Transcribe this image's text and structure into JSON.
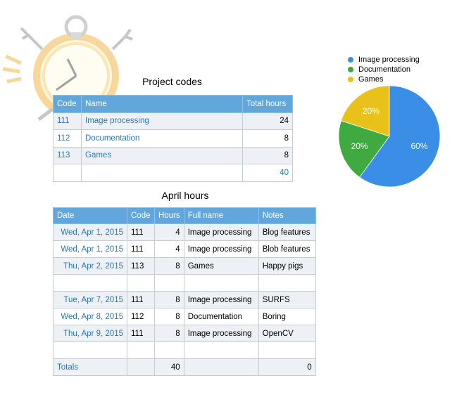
{
  "project_codes": {
    "title": "Project codes",
    "headers": [
      "Code",
      "Name",
      "Total hours"
    ],
    "rows": [
      {
        "code": "111",
        "name": "Image processing",
        "total": "24"
      },
      {
        "code": "112",
        "name": "Documentation",
        "total": "8"
      },
      {
        "code": "113",
        "name": "Games",
        "total": "8"
      },
      {
        "code": "",
        "name": "",
        "total": "40"
      }
    ]
  },
  "april_hours": {
    "title": "April hours",
    "headers": [
      "Date",
      "Code",
      "Hours",
      "Full name",
      "Notes"
    ],
    "rows": [
      {
        "date": "Wed, Apr 1, 2015",
        "code": "111",
        "hours": "4",
        "full_name": "Image processing",
        "notes": "Blog features"
      },
      {
        "date": "Wed, Apr 1, 2015",
        "code": "111",
        "hours": "4",
        "full_name": "Image processing",
        "notes": "Blob features"
      },
      {
        "date": "Thu, Apr 2, 2015",
        "code": "113",
        "hours": "8",
        "full_name": "Games",
        "notes": "Happy pigs"
      },
      {
        "date": "",
        "code": "",
        "hours": "",
        "full_name": "",
        "notes": ""
      },
      {
        "date": "Tue, Apr 7, 2015",
        "code": "111",
        "hours": "8",
        "full_name": "Image processing",
        "notes": "SURFS"
      },
      {
        "date": "Wed, Apr 8, 2015",
        "code": "112",
        "hours": "8",
        "full_name": "Documentation",
        "notes": "Boring"
      },
      {
        "date": "Thu, Apr 9, 2015",
        "code": "111",
        "hours": "8",
        "full_name": "Image processing",
        "notes": "OpenCV"
      },
      {
        "date": "",
        "code": "",
        "hours": "",
        "full_name": "",
        "notes": ""
      }
    ],
    "totals": {
      "label": "Totals",
      "hours": "40",
      "notes_total": "0"
    }
  },
  "chart_data": {
    "type": "pie",
    "title": "",
    "legend_position": "top-right",
    "categories": [
      "Image processing",
      "Documentation",
      "Games"
    ],
    "values": [
      60,
      20,
      20
    ],
    "labels": [
      "60%",
      "20%",
      "20%"
    ],
    "colors": [
      "#3a8ee6",
      "#3faa3f",
      "#e8c21b"
    ]
  }
}
